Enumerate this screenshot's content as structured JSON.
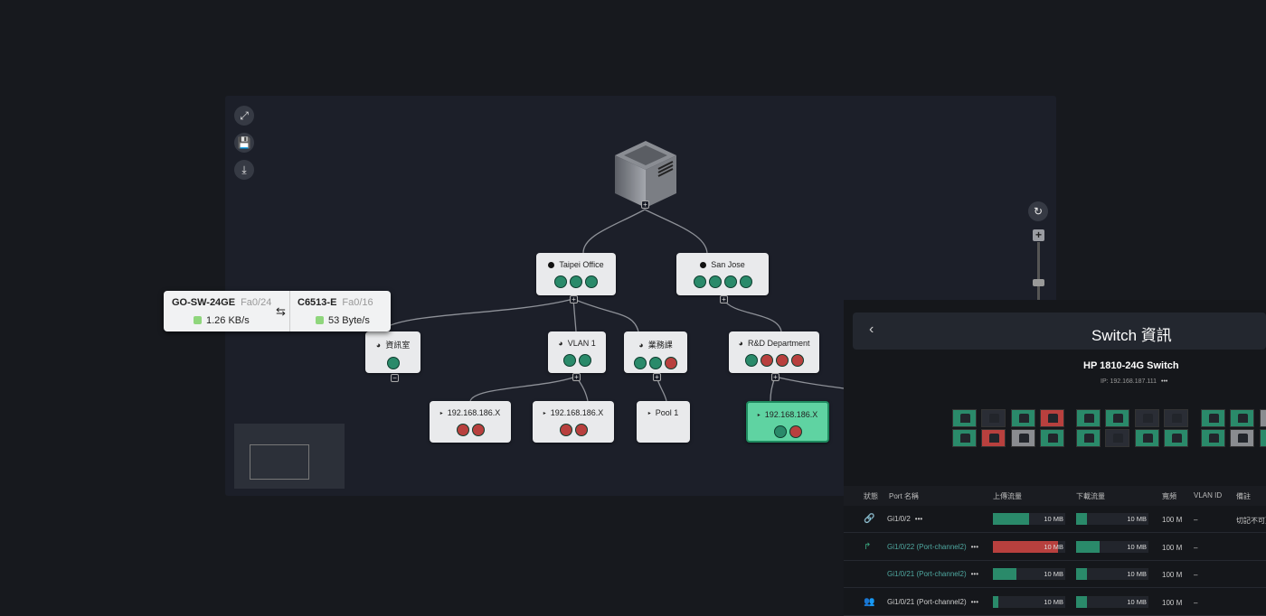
{
  "colors": {
    "green": "#2a8a6a",
    "red": "#b8403e",
    "grey": "#8a8c90",
    "dark": "#2a2d35",
    "selected": "#5fd3a2"
  },
  "toolbar": {
    "fullscreen_icon": "fullscreen-icon",
    "save_icon": "save-icon",
    "download_icon": "download-icon",
    "refresh_icon": "refresh-icon",
    "zoom_level": 0.2
  },
  "topology": {
    "root": {
      "icon": "server-icon"
    },
    "nodes": [
      {
        "label": "Taipei Office",
        "icons": [
          "green",
          "green",
          "green"
        ]
      },
      {
        "label": "San Jose",
        "icons": [
          "green",
          "green",
          "green",
          "green"
        ]
      },
      {
        "label": "資訊室",
        "icons": [
          "green"
        ]
      },
      {
        "label": "VLAN 1",
        "icons": [
          "green",
          "green"
        ]
      },
      {
        "label": "業務課",
        "icons": [
          "green",
          "green",
          "red"
        ]
      },
      {
        "label": "R&D Department",
        "icons": [
          "green",
          "red",
          "red",
          "red"
        ]
      },
      {
        "label": "192.168.186.X",
        "icons": [
          "red",
          "red"
        ]
      },
      {
        "label": "192.168.186.X",
        "icons": [
          "red",
          "red"
        ]
      },
      {
        "label": "Pool 1",
        "icons": []
      },
      {
        "label": "192.168.186.X",
        "icons": [
          "green",
          "red"
        ],
        "selected": true
      }
    ]
  },
  "tooltip": {
    "left": {
      "device": "GO-SW-24GE",
      "port": "Fa0/24",
      "rate": "1.26 KB/s"
    },
    "right": {
      "device": "C6513-E",
      "port": "Fa0/16",
      "rate": "53 Byte/s"
    }
  },
  "panel": {
    "title": "Switch 資訊",
    "back": "‹",
    "device": "HP 1810-24G Switch",
    "ip": "IP: 192.168.187.111",
    "more": "•••",
    "ports_top": [
      "green",
      "dark",
      "green",
      "red",
      "green",
      "green",
      "dark",
      "dark",
      "green",
      "green",
      "grey"
    ],
    "ports_bottom": [
      "green",
      "red",
      "grey",
      "green",
      "green",
      "dark",
      "green",
      "green",
      "green",
      "grey",
      "green"
    ],
    "columns": [
      "狀態",
      "Port 名稱",
      "上傳流量",
      "下載流量",
      "寬頻",
      "VLAN ID",
      "備註"
    ],
    "rows": [
      {
        "status": "link",
        "status_icon": "🔗",
        "name": "Gi1/0/2",
        "linked": false,
        "up": 50,
        "up_color": "green",
        "up_label": "10 MB",
        "down": 15,
        "down_label": "10 MB",
        "bw": "100 M",
        "vlan": "–",
        "note": "切記不可更"
      },
      {
        "status": "redirect",
        "status_icon": "↱",
        "name": "Gi1/0/22 (Port-channel2)",
        "linked": true,
        "up": 90,
        "up_color": "red",
        "up_label": "10 MB",
        "down": 33,
        "down_label": "10 MB",
        "bw": "100 M",
        "vlan": "–",
        "note": ""
      },
      {
        "status": "none",
        "status_icon": "",
        "name": "Gi1/0/21 (Port-channel2)",
        "linked": true,
        "up": 33,
        "up_color": "green",
        "up_label": "10 MB",
        "down": 15,
        "down_label": "10 MB",
        "bw": "100 M",
        "vlan": "–",
        "note": ""
      },
      {
        "status": "group",
        "status_icon": "👥",
        "name": "Gi1/0/21 (Port-channel2)",
        "linked": false,
        "up": 7,
        "up_color": "green",
        "up_label": "10 MB",
        "down": 15,
        "down_label": "10 MB",
        "bw": "100 M",
        "vlan": "–",
        "note": ""
      }
    ]
  }
}
